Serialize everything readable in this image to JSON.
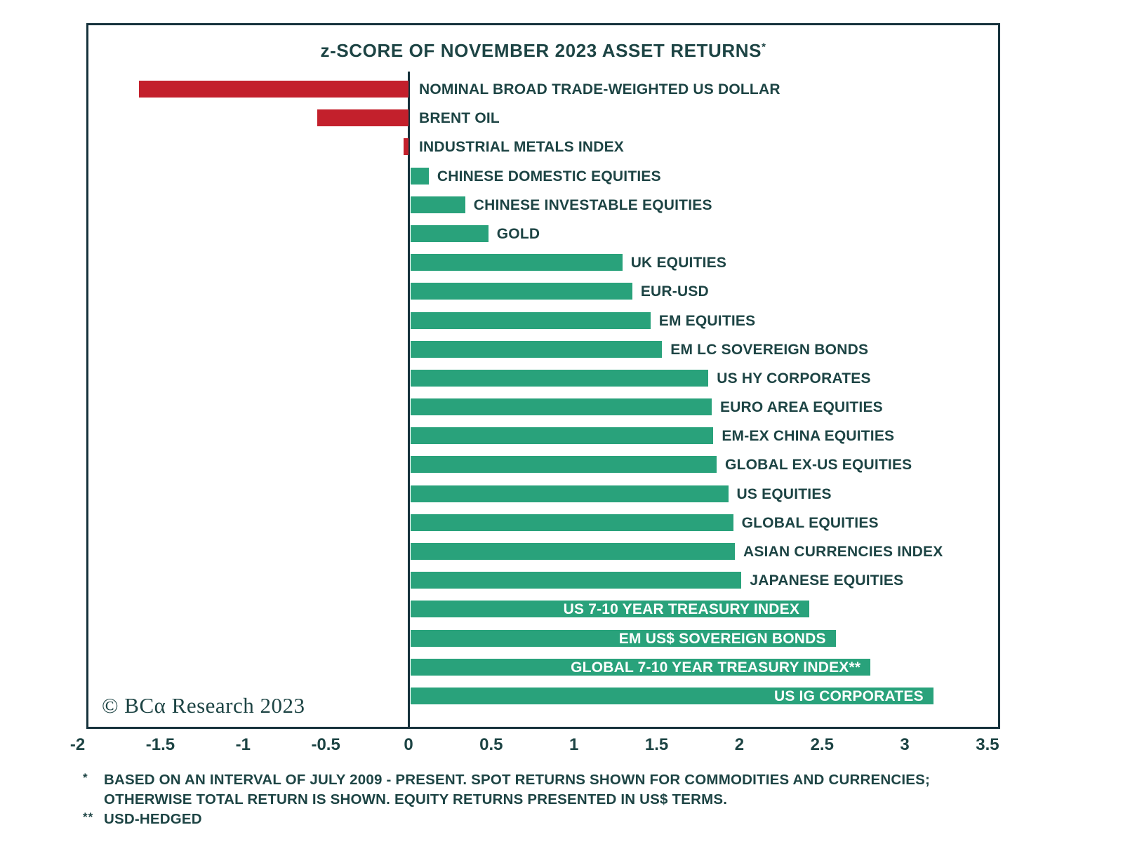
{
  "chart": {
    "title": "z-SCORE OF NOVEMBER 2023 ASSET RETURNS",
    "title_footnote_marker": "*",
    "copyright": "© BCα Research 2023",
    "colors": {
      "positive": "#29a27b",
      "negative": "#c3202c",
      "text": "#1d4444",
      "frame": "#16323c"
    }
  },
  "chart_data": {
    "type": "bar",
    "orientation": "horizontal",
    "title": "z-SCORE OF NOVEMBER 2023 ASSET RETURNS*",
    "xlabel": "z-score",
    "xlim": [
      -2.05,
      3.6
    ],
    "x_ticks": [
      -2,
      -1.5,
      -1,
      -0.5,
      0,
      0.5,
      1,
      1.5,
      2,
      2.5,
      3,
      3.5
    ],
    "grid": false,
    "bars": [
      {
        "label": "NOMINAL BROAD TRADE-WEIGHTED US DOLLAR",
        "value": -1.63,
        "label_placement": "outside"
      },
      {
        "label": "BRENT OIL",
        "value": -0.55,
        "label_placement": "outside"
      },
      {
        "label": "INDUSTRIAL METALS INDEX",
        "value": -0.03,
        "label_placement": "outside"
      },
      {
        "label": "CHINESE DOMESTIC EQUITIES",
        "value": 0.11,
        "label_placement": "outside"
      },
      {
        "label": "CHINESE INVESTABLE EQUITIES",
        "value": 0.33,
        "label_placement": "outside"
      },
      {
        "label": "GOLD",
        "value": 0.47,
        "label_placement": "outside"
      },
      {
        "label": "UK EQUITIES",
        "value": 1.28,
        "label_placement": "outside"
      },
      {
        "label": "EUR-USD",
        "value": 1.34,
        "label_placement": "outside"
      },
      {
        "label": "EM EQUITIES",
        "value": 1.45,
        "label_placement": "outside"
      },
      {
        "label": "EM LC SOVEREIGN BONDS",
        "value": 1.52,
        "label_placement": "outside"
      },
      {
        "label": "US HY CORPORATES",
        "value": 1.8,
        "label_placement": "outside"
      },
      {
        "label": "EURO AREA EQUITIES",
        "value": 1.82,
        "label_placement": "outside"
      },
      {
        "label": "EM-EX CHINA EQUITIES",
        "value": 1.83,
        "label_placement": "outside"
      },
      {
        "label": "GLOBAL EX-US EQUITIES",
        "value": 1.85,
        "label_placement": "outside"
      },
      {
        "label": "US EQUITIES",
        "value": 1.92,
        "label_placement": "outside"
      },
      {
        "label": "GLOBAL EQUITIES",
        "value": 1.95,
        "label_placement": "outside"
      },
      {
        "label": "ASIAN CURRENCIES INDEX",
        "value": 1.96,
        "label_placement": "outside"
      },
      {
        "label": "JAPANESE EQUITIES",
        "value": 2.0,
        "label_placement": "outside"
      },
      {
        "label": "US 7-10 YEAR TREASURY INDEX",
        "value": 2.41,
        "label_placement": "inside"
      },
      {
        "label": "EM US$ SOVEREIGN BONDS",
        "value": 2.57,
        "label_placement": "inside"
      },
      {
        "label": "GLOBAL 7-10 YEAR TREASURY INDEX**",
        "value": 2.78,
        "label_placement": "inside"
      },
      {
        "label": "US IG CORPORATES",
        "value": 3.16,
        "label_placement": "inside"
      }
    ]
  },
  "footnotes": [
    {
      "marker": "*",
      "text": "BASED ON AN INTERVAL OF JULY 2009 - PRESENT. SPOT RETURNS SHOWN FOR COMMODITIES AND CURRENCIES; OTHERWISE TOTAL RETURN IS SHOWN. EQUITY RETURNS PRESENTED IN US$ TERMS."
    },
    {
      "marker": "**",
      "text": "USD-HEDGED"
    }
  ]
}
